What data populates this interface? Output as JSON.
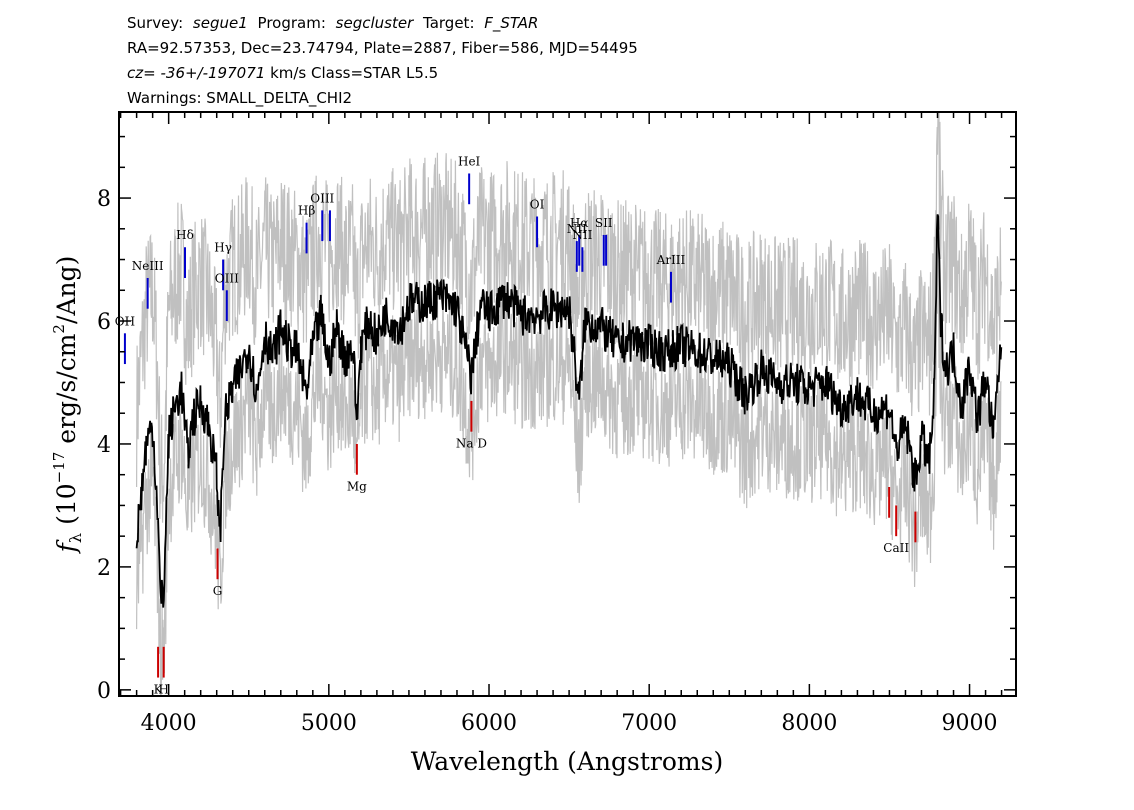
{
  "header": {
    "line1": {
      "survey_label": "Survey:",
      "survey": "segue1",
      "program_label": "Program:",
      "program": "segcluster",
      "target_label": "Target:",
      "target": "F_STAR"
    },
    "line2": "RA=92.57353, Dec=23.74794, Plate=2887, Fiber=586, MJD=54495",
    "line3": {
      "cz_label": "cz=",
      "cz": "-36+/-197071",
      "rest": " km/s Class=STAR L5.5"
    },
    "line4": "Warnings: SMALL_DELTA_CHI2"
  },
  "chart_data": {
    "type": "line",
    "xlabel": "Wavelength (Angstroms)",
    "ylabel_prefix": "f",
    "ylabel_sub": "λ",
    "ylabel_mid": "(10",
    "ylabel_exp": "−17",
    "ylabel_rest": "erg/s/cm",
    "ylabel_exp2": "2",
    "ylabel_end": "/Ang)",
    "xlim": [
      3690,
      9290
    ],
    "ylim": [
      -0.1,
      9.4
    ],
    "xticks": [
      4000,
      5000,
      6000,
      7000,
      8000,
      9000
    ],
    "xtick_labels": [
      "4000",
      "5000",
      "6000",
      "7000",
      "8000",
      "9000"
    ],
    "yticks": [
      0,
      2,
      4,
      6,
      8
    ],
    "ytick_labels": [
      "0",
      "2",
      "4",
      "6",
      "8"
    ],
    "series": [
      {
        "role": "smoothed flux",
        "color": "#000000",
        "x": [
          3800,
          3830,
          3860,
          3900,
          3930,
          3950,
          3970,
          4000,
          4040,
          4080,
          4120,
          4150,
          4200,
          4250,
          4300,
          4320,
          4350,
          4400,
          4450,
          4500,
          4550,
          4600,
          4650,
          4700,
          4750,
          4800,
          4860,
          4900,
          4950,
          5000,
          5050,
          5100,
          5150,
          5175,
          5200,
          5250,
          5300,
          5350,
          5400,
          5450,
          5500,
          5600,
          5700,
          5800,
          5890,
          5950,
          6000,
          6100,
          6200,
          6300,
          6400,
          6500,
          6563,
          6600,
          6700,
          6800,
          6900,
          7000,
          7100,
          7200,
          7300,
          7400,
          7500,
          7600,
          7700,
          7800,
          7900,
          8000,
          8100,
          8200,
          8300,
          8400,
          8500,
          8542,
          8600,
          8662,
          8700,
          8750,
          8780,
          8800,
          8820,
          8850,
          8900,
          8950,
          9000,
          9050,
          9100,
          9150,
          9200
        ],
        "y": [
          2.5,
          3.2,
          4.0,
          4.3,
          3.0,
          1.4,
          1.6,
          4.1,
          4.6,
          4.9,
          3.8,
          4.4,
          4.7,
          4.3,
          3.5,
          2.5,
          4.4,
          4.9,
          5.2,
          5.6,
          4.8,
          5.8,
          5.4,
          5.9,
          5.6,
          5.5,
          4.8,
          5.6,
          6.1,
          5.3,
          5.9,
          5.4,
          5.6,
          4.4,
          5.6,
          6.0,
          5.7,
          6.1,
          6.0,
          5.9,
          6.3,
          6.3,
          6.4,
          6.2,
          5.1,
          6.3,
          6.1,
          6.4,
          6.1,
          6.1,
          6.2,
          6.2,
          4.7,
          6.0,
          5.9,
          5.6,
          5.7,
          5.6,
          5.5,
          5.6,
          5.5,
          5.4,
          5.3,
          4.8,
          5.2,
          5.0,
          5.0,
          4.9,
          5.0,
          4.6,
          4.8,
          4.5,
          4.6,
          3.9,
          4.3,
          3.4,
          4.1,
          3.7,
          4.8,
          7.8,
          6.0,
          5.2,
          5.5,
          4.6,
          5.3,
          4.4,
          5.1,
          4.1,
          5.8
        ]
      },
      {
        "role": "noise envelope",
        "color": "#c0c0c0",
        "x": [
          3800,
          3830,
          3860,
          3900,
          3930,
          3950,
          3970,
          4000,
          4040,
          4080,
          4120,
          4150,
          4200,
          4250,
          4300,
          4320,
          4350,
          4400,
          4450,
          4500,
          4550,
          4600,
          4650,
          4700,
          4750,
          4800,
          4860,
          4900,
          4950,
          5000,
          5050,
          5100,
          5150,
          5175,
          5200,
          5250,
          5300,
          5350,
          5400,
          5450,
          5500,
          5600,
          5700,
          5800,
          5890,
          5950,
          6000,
          6100,
          6200,
          6300,
          6400,
          6500,
          6563,
          6600,
          6700,
          6800,
          6900,
          7000,
          7100,
          7200,
          7300,
          7400,
          7500,
          7600,
          7700,
          7800,
          7900,
          8000,
          8100,
          8200,
          8300,
          8400,
          8500,
          8542,
          8600,
          8662,
          8700,
          8750,
          8780,
          8800,
          8820,
          8850,
          8900,
          8950,
          9000,
          9050,
          9100,
          9150,
          9200
        ],
        "y": [
          4.5,
          5.4,
          6.2,
          6.5,
          5.2,
          3.4,
          3.6,
          6.1,
          6.6,
          6.9,
          5.8,
          6.4,
          6.7,
          6.3,
          5.5,
          4.5,
          6.4,
          6.9,
          7.0,
          7.3,
          6.6,
          7.2,
          6.9,
          7.3,
          7.1,
          7.0,
          6.6,
          7.1,
          7.5,
          7.0,
          7.4,
          7.0,
          7.1,
          6.2,
          7.0,
          7.3,
          7.1,
          7.4,
          7.3,
          7.2,
          7.5,
          7.5,
          7.6,
          7.4,
          6.6,
          7.4,
          7.3,
          7.5,
          7.3,
          7.2,
          7.3,
          7.3,
          6.3,
          7.1,
          7.0,
          6.8,
          6.8,
          6.7,
          6.6,
          6.7,
          6.6,
          6.5,
          6.5,
          6.1,
          6.4,
          6.2,
          6.2,
          6.2,
          6.3,
          6.0,
          6.2,
          6.0,
          6.1,
          5.6,
          5.9,
          5.2,
          5.8,
          5.5,
          6.5,
          9.4,
          7.6,
          6.8,
          7.0,
          6.3,
          7.0,
          6.2,
          6.8,
          5.9,
          6.6
        ]
      }
    ],
    "emission_lines": [
      {
        "label": "OH",
        "x": 3727,
        "y0": 5.3,
        "y1": 5.8
      },
      {
        "label": "NeIII",
        "x": 3869,
        "y0": 6.2,
        "y1": 6.7
      },
      {
        "label": "Hδ",
        "x": 4102,
        "y0": 6.7,
        "y1": 7.2
      },
      {
        "label": "Hγ",
        "x": 4340,
        "y0": 6.5,
        "y1": 7.0
      },
      {
        "label": "OIII",
        "x": 4363,
        "y0": 6.0,
        "y1": 6.5
      },
      {
        "label": "Hβ",
        "x": 4861,
        "y0": 7.1,
        "y1": 7.6
      },
      {
        "label": "OIII",
        "x": 4959,
        "y0": 7.3,
        "y1": 7.8
      },
      {
        "label": "",
        "x": 5007,
        "y0": 7.3,
        "y1": 7.8
      },
      {
        "label": "HeI",
        "x": 5876,
        "y0": 7.9,
        "y1": 8.4
      },
      {
        "label": "OI",
        "x": 6300,
        "y0": 7.2,
        "y1": 7.7
      },
      {
        "label": "NII",
        "x": 6548,
        "y0": 6.8,
        "y1": 7.3
      },
      {
        "label": "Hα",
        "x": 6563,
        "y0": 6.9,
        "y1": 7.4
      },
      {
        "label": "NII",
        "x": 6583,
        "y0": 6.8,
        "y1": 7.2
      },
      {
        "label": "SII",
        "x": 6716,
        "y0": 6.9,
        "y1": 7.4
      },
      {
        "label": "",
        "x": 6731,
        "y0": 6.9,
        "y1": 7.4
      },
      {
        "label": "ArIII",
        "x": 7136,
        "y0": 6.3,
        "y1": 6.8
      }
    ],
    "absorption_lines": [
      {
        "label": "K",
        "x": 3934,
        "y0": 0.2,
        "y1": 0.7
      },
      {
        "label": "H",
        "x": 3969,
        "y0": 0.2,
        "y1": 0.7
      },
      {
        "label": "G",
        "x": 4305,
        "y0": 1.8,
        "y1": 2.3
      },
      {
        "label": "Mg",
        "x": 5175,
        "y0": 3.5,
        "y1": 4.0
      },
      {
        "label": "Na D",
        "x": 5890,
        "y0": 4.2,
        "y1": 4.7
      },
      {
        "label": "",
        "x": 8498,
        "y0": 2.8,
        "y1": 3.3
      },
      {
        "label": "CaII",
        "x": 8542,
        "y0": 2.5,
        "y1": 3.0
      },
      {
        "label": "",
        "x": 8662,
        "y0": 2.4,
        "y1": 2.9
      }
    ]
  },
  "colors": {
    "emission": "#0000cc",
    "absorption": "#cc0000",
    "flux": "#000000",
    "noise": "#c0c0c0"
  }
}
